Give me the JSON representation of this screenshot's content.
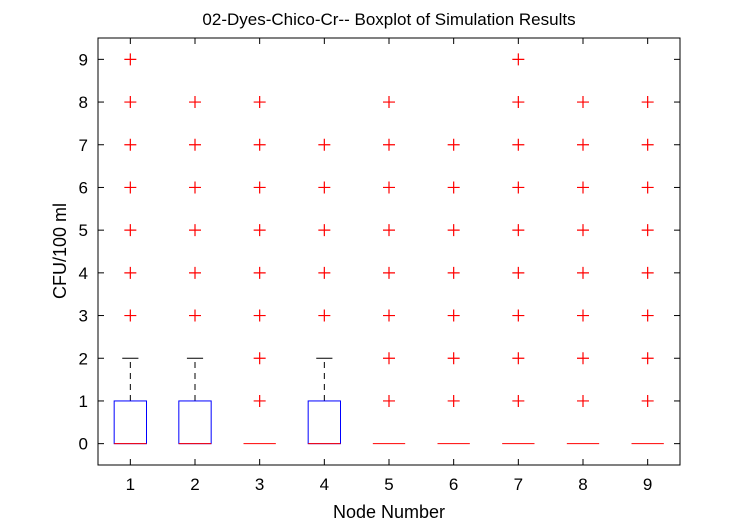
{
  "chart_data": {
    "type": "boxplot",
    "title": "02-Dyes-Chico-Cr-- Boxplot of Simulation Results",
    "xlabel": "Node Number",
    "ylabel": "CFU/100 ml",
    "xlim": [
      0.5,
      9.5
    ],
    "ylim": [
      -0.5,
      9.5
    ],
    "xticks": [
      "1",
      "2",
      "3",
      "4",
      "5",
      "6",
      "7",
      "8",
      "9"
    ],
    "yticks": [
      "0",
      "1",
      "2",
      "3",
      "4",
      "5",
      "6",
      "7",
      "8",
      "9"
    ],
    "grid": false,
    "colors": {
      "box": "#0000ff",
      "median": "#ff0000",
      "whisker": "#000000",
      "outlier": "#ff0000"
    },
    "boxes": [
      {
        "node": 1,
        "q1": 0,
        "median": 0,
        "q3": 1,
        "whisker_low": 0,
        "whisker_high": 2,
        "outliers": [
          3,
          4,
          5,
          6,
          7,
          8,
          9
        ]
      },
      {
        "node": 2,
        "q1": 0,
        "median": 0,
        "q3": 1,
        "whisker_low": 0,
        "whisker_high": 2,
        "outliers": [
          3,
          4,
          5,
          6,
          7,
          8
        ]
      },
      {
        "node": 3,
        "q1": 0,
        "median": 0,
        "q3": 0,
        "whisker_low": 0,
        "whisker_high": 0,
        "outliers": [
          1,
          2,
          3,
          4,
          5,
          6,
          7,
          8
        ]
      },
      {
        "node": 4,
        "q1": 0,
        "median": 0,
        "q3": 1,
        "whisker_low": 0,
        "whisker_high": 2,
        "outliers": [
          3,
          4,
          5,
          6,
          7
        ]
      },
      {
        "node": 5,
        "q1": 0,
        "median": 0,
        "q3": 0,
        "whisker_low": 0,
        "whisker_high": 0,
        "outliers": [
          1,
          2,
          3,
          4,
          5,
          6,
          7,
          8
        ]
      },
      {
        "node": 6,
        "q1": 0,
        "median": 0,
        "q3": 0,
        "whisker_low": 0,
        "whisker_high": 0,
        "outliers": [
          1,
          2,
          3,
          4,
          5,
          6,
          7
        ]
      },
      {
        "node": 7,
        "q1": 0,
        "median": 0,
        "q3": 0,
        "whisker_low": 0,
        "whisker_high": 0,
        "outliers": [
          1,
          2,
          3,
          4,
          5,
          6,
          7,
          8,
          9
        ]
      },
      {
        "node": 8,
        "q1": 0,
        "median": 0,
        "q3": 0,
        "whisker_low": 0,
        "whisker_high": 0,
        "outliers": [
          1,
          2,
          3,
          4,
          5,
          6,
          7,
          8
        ]
      },
      {
        "node": 9,
        "q1": 0,
        "median": 0,
        "q3": 0,
        "whisker_low": 0,
        "whisker_high": 0,
        "outliers": [
          1,
          2,
          3,
          4,
          5,
          6,
          7,
          8
        ]
      }
    ]
  }
}
